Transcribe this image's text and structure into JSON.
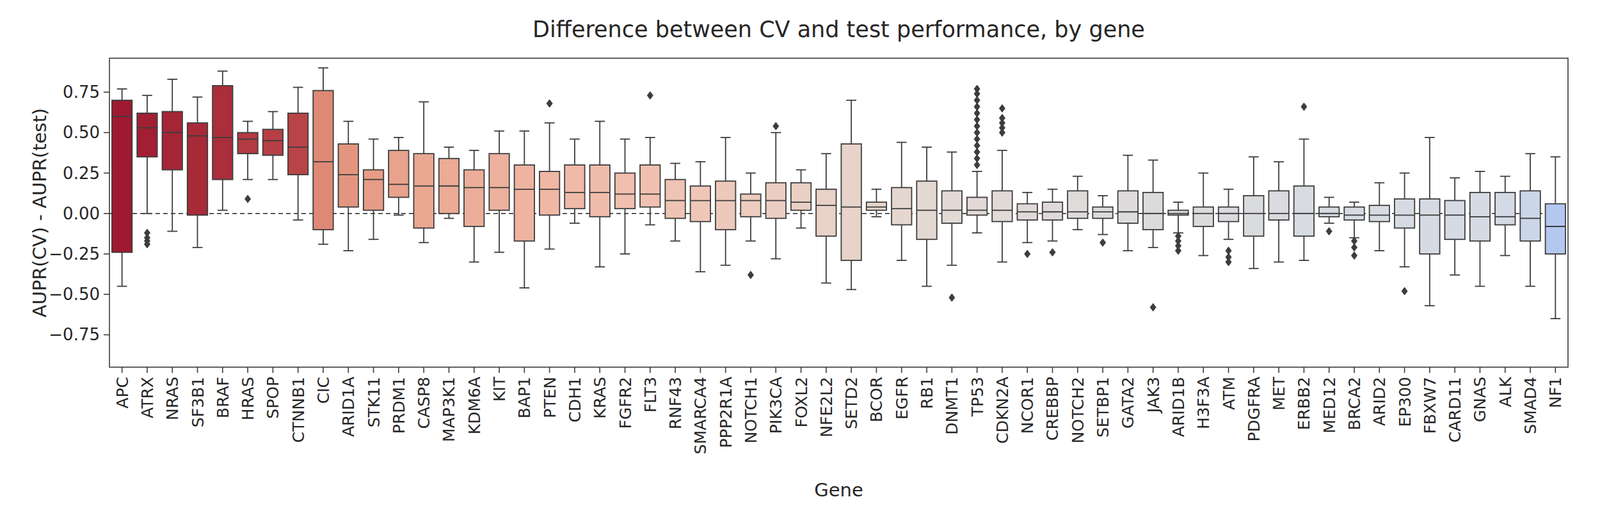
{
  "chart_data": {
    "type": "box",
    "title": "Difference between CV and test performance, by gene",
    "x_label": "Gene",
    "y_label": "AUPR(CV) - AUPR(test)",
    "ylim": [
      -0.95,
      0.96
    ],
    "yticks": [
      {
        "value": -0.75,
        "label": "−0.75"
      },
      {
        "value": -0.5,
        "label": "−0.50"
      },
      {
        "value": -0.25,
        "label": "−0.25"
      },
      {
        "value": 0,
        "label": "0.00"
      },
      {
        "value": 0.25,
        "label": "0.25"
      },
      {
        "value": 0.5,
        "label": "0.50"
      },
      {
        "value": 0.75,
        "label": "0.75"
      }
    ],
    "grid": false,
    "categories": [
      "APC",
      "ATRX",
      "NRAS",
      "SF3B1",
      "BRAF",
      "HRAS",
      "SPOP",
      "CTNNB1",
      "CIC",
      "ARID1A",
      "STK11",
      "PRDM1",
      "CASP8",
      "MAP3K1",
      "KDM6A",
      "KIT",
      "BAP1",
      "PTEN",
      "CDH1",
      "KRAS",
      "FGFR2",
      "FLT3",
      "RNF43",
      "SMARCA4",
      "PPP2R1A",
      "NOTCH1",
      "PIK3CA",
      "FOXL2",
      "NFE2L2",
      "SETD2",
      "BCOR",
      "EGFR",
      "RB1",
      "DNMT1",
      "TP53",
      "CDKN2A",
      "NCOR1",
      "CREBBP",
      "NOTCH2",
      "SETBP1",
      "GATA2",
      "JAK3",
      "ARID1B",
      "H3F3A",
      "ATM",
      "PDGFRA",
      "MET",
      "ERBB2",
      "MED12",
      "BRCA2",
      "ARID2",
      "EP300",
      "FBXW7",
      "CARD11",
      "GNAS",
      "ALK",
      "SMAD4",
      "NF1"
    ],
    "whisker_low": [
      -0.45,
      0.0,
      -0.11,
      -0.21,
      0.02,
      0.21,
      0.21,
      -0.04,
      -0.19,
      -0.23,
      -0.16,
      -0.01,
      -0.18,
      -0.03,
      -0.3,
      -0.24,
      -0.46,
      -0.22,
      -0.06,
      -0.33,
      -0.25,
      -0.07,
      -0.17,
      -0.36,
      -0.32,
      -0.17,
      -0.28,
      -0.09,
      -0.43,
      -0.47,
      -0.02,
      -0.29,
      -0.45,
      -0.32,
      -0.12,
      -0.3,
      -0.18,
      -0.17,
      -0.1,
      -0.13,
      -0.23,
      -0.21,
      -0.12,
      -0.26,
      -0.16,
      -0.34,
      -0.3,
      -0.29,
      -0.06,
      -0.15,
      -0.23,
      -0.33,
      -0.57,
      -0.38,
      -0.45,
      -0.26,
      -0.45,
      -0.65
    ],
    "q1": [
      -0.24,
      0.35,
      0.27,
      -0.01,
      0.21,
      0.37,
      0.36,
      0.24,
      -0.1,
      0.04,
      0.02,
      0.1,
      -0.09,
      0.0,
      -0.08,
      0.02,
      -0.17,
      -0.01,
      0.03,
      -0.02,
      0.03,
      0.04,
      -0.03,
      -0.05,
      -0.1,
      -0.02,
      -0.03,
      0.02,
      -0.14,
      -0.29,
      0.02,
      -0.07,
      -0.16,
      -0.06,
      -0.01,
      -0.05,
      -0.04,
      -0.04,
      -0.03,
      -0.03,
      -0.06,
      -0.1,
      -0.01,
      -0.08,
      -0.05,
      -0.14,
      -0.04,
      -0.14,
      -0.02,
      -0.04,
      -0.05,
      -0.09,
      -0.25,
      -0.16,
      -0.17,
      -0.07,
      -0.17,
      -0.25
    ],
    "median": [
      0.6,
      0.53,
      0.5,
      0.48,
      0.47,
      0.46,
      0.45,
      0.41,
      0.32,
      0.24,
      0.21,
      0.18,
      0.17,
      0.17,
      0.16,
      0.16,
      0.15,
      0.15,
      0.13,
      0.13,
      0.12,
      0.12,
      0.08,
      0.08,
      0.08,
      0.08,
      0.08,
      0.07,
      0.05,
      0.04,
      0.04,
      0.03,
      0.02,
      0.02,
      0.02,
      0.02,
      0.01,
      0.01,
      0.01,
      0.01,
      0.01,
      0.0,
      0.0,
      0.0,
      0.0,
      0.0,
      0.0,
      0.0,
      0.0,
      -0.01,
      -0.01,
      -0.01,
      -0.01,
      -0.01,
      -0.02,
      -0.02,
      -0.03,
      -0.08
    ],
    "q3": [
      0.7,
      0.62,
      0.63,
      0.56,
      0.79,
      0.5,
      0.52,
      0.62,
      0.76,
      0.43,
      0.27,
      0.39,
      0.37,
      0.34,
      0.27,
      0.37,
      0.3,
      0.26,
      0.3,
      0.3,
      0.25,
      0.3,
      0.21,
      0.17,
      0.2,
      0.12,
      0.19,
      0.19,
      0.15,
      0.43,
      0.07,
      0.16,
      0.2,
      0.14,
      0.1,
      0.14,
      0.06,
      0.07,
      0.14,
      0.04,
      0.14,
      0.13,
      0.02,
      0.04,
      0.04,
      0.11,
      0.14,
      0.17,
      0.04,
      0.04,
      0.05,
      0.09,
      0.09,
      0.08,
      0.13,
      0.13,
      0.14,
      0.06
    ],
    "whisker_high": [
      0.77,
      0.73,
      0.83,
      0.72,
      0.88,
      0.57,
      0.63,
      0.78,
      0.9,
      0.57,
      0.46,
      0.47,
      0.69,
      0.41,
      0.39,
      0.51,
      0.51,
      0.56,
      0.46,
      0.57,
      0.46,
      0.47,
      0.31,
      0.32,
      0.47,
      0.25,
      0.5,
      0.27,
      0.37,
      0.7,
      0.15,
      0.44,
      0.41,
      0.38,
      0.26,
      0.39,
      0.13,
      0.15,
      0.23,
      0.11,
      0.36,
      0.33,
      0.07,
      0.25,
      0.15,
      0.35,
      0.32,
      0.46,
      0.1,
      0.07,
      0.19,
      0.25,
      0.47,
      0.22,
      0.26,
      0.23,
      0.37,
      0.35
    ],
    "outliers": [
      [],
      [
        -0.12,
        -0.15,
        -0.17,
        -0.19
      ],
      [],
      [],
      [],
      [
        0.09
      ],
      [],
      [],
      [],
      [],
      [],
      [],
      [],
      [],
      [],
      [],
      [],
      [
        0.68
      ],
      [],
      [],
      [],
      [
        0.73
      ],
      [],
      [],
      [],
      [
        -0.38
      ],
      [
        0.54
      ],
      [],
      [],
      [],
      [],
      [],
      [],
      [
        -0.52
      ],
      [
        0.3,
        0.34,
        0.38,
        0.42,
        0.46,
        0.5,
        0.54,
        0.58,
        0.62,
        0.66,
        0.7,
        0.74,
        0.77
      ],
      [
        0.5,
        0.53,
        0.56,
        0.59,
        0.65
      ],
      [
        -0.25
      ],
      [
        -0.24
      ],
      [],
      [
        -0.18
      ],
      [],
      [
        -0.58
      ],
      [
        -0.14,
        -0.17,
        -0.2,
        -0.23
      ],
      [],
      [
        -0.23,
        -0.27,
        -0.3
      ],
      [],
      [],
      [
        0.66
      ],
      [
        -0.11
      ],
      [
        -0.17,
        -0.21,
        -0.26
      ],
      [],
      [
        -0.48
      ],
      [],
      [],
      [],
      [],
      [],
      []
    ],
    "colors": [
      "#9e1a30",
      "#a21f33",
      "#a52536",
      "#a82a38",
      "#aa2e3b",
      "#b23a42",
      "#b53f45",
      "#b84448",
      "#de8975",
      "#e39580",
      "#e69c87",
      "#e8a28d",
      "#eaa792",
      "#ebab96",
      "#ecae9a",
      "#edb19e",
      "#eeb4a1",
      "#efb7a4",
      "#efbaa8",
      "#f0bcaa",
      "#f0bfad",
      "#f0c1b0",
      "#efc4b4",
      "#eec7b8",
      "#edc9bb",
      "#ecccbf",
      "#ebcec2",
      "#eacfc4",
      "#e9d1c7",
      "#e7d3ca",
      "#e6d5cd",
      "#e5d7d0",
      "#e4d8d2",
      "#e3d9d4",
      "#e2d9d6",
      "#e1dad7",
      "#e0dad8",
      "#dfdad9",
      "#dfdbda",
      "#dedbdb",
      "#dddbdc",
      "#dcdbdc",
      "#dcdbdd",
      "#dbdbde",
      "#dadbde",
      "#d9dbdf",
      "#d9dbe0",
      "#d8dbe0",
      "#d8dbe1",
      "#d7dbe2",
      "#d7dbe2",
      "#d6dbe3",
      "#d6dbe3",
      "#d5dae4",
      "#d5dae4",
      "#d4dae5",
      "#ccd6e9",
      "#b3c8ee"
    ]
  }
}
